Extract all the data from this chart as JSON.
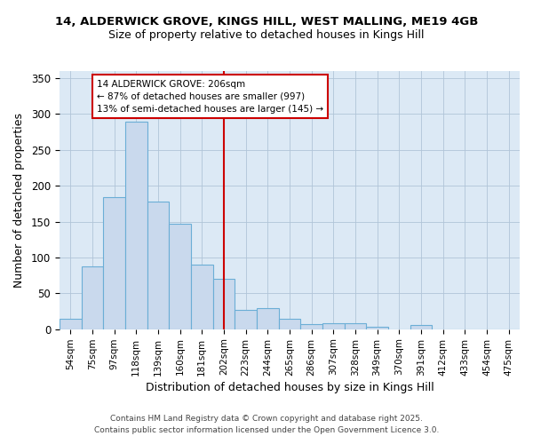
{
  "title_line1": "14, ALDERWICK GROVE, KINGS HILL, WEST MALLING, ME19 4GB",
  "title_line2": "Size of property relative to detached houses in Kings Hill",
  "categories": [
    "54sqm",
    "75sqm",
    "97sqm",
    "118sqm",
    "139sqm",
    "160sqm",
    "181sqm",
    "202sqm",
    "223sqm",
    "244sqm",
    "265sqm",
    "286sqm",
    "307sqm",
    "328sqm",
    "349sqm",
    "370sqm",
    "391sqm",
    "412sqm",
    "433sqm",
    "454sqm",
    "475sqm"
  ],
  "values": [
    14,
    88,
    184,
    290,
    178,
    147,
    90,
    70,
    27,
    29,
    14,
    7,
    8,
    8,
    3,
    0,
    6,
    0,
    0,
    0,
    0
  ],
  "bar_color": "#c9d9ed",
  "bar_edge_color": "#6baed6",
  "grid_color": "#b0c4d8",
  "bg_color": "#dce9f5",
  "fig_bg_color": "#ffffff",
  "xlabel": "Distribution of detached houses by size in Kings Hill",
  "ylabel": "Number of detached properties",
  "ylim": [
    0,
    360
  ],
  "yticks": [
    0,
    50,
    100,
    150,
    200,
    250,
    300,
    350
  ],
  "red_line_idx": 7,
  "annotation_line1": "14 ALDERWICK GROVE: 206sqm",
  "annotation_line2": "← 87% of detached houses are smaller (997)",
  "annotation_line3": "13% of semi-detached houses are larger (145) →",
  "annotation_box_color": "#ffffff",
  "annotation_box_edge": "#cc0000",
  "red_line_color": "#cc0000",
  "footer_line1": "Contains HM Land Registry data © Crown copyright and database right 2025.",
  "footer_line2": "Contains public sector information licensed under the Open Government Licence 3.0.",
  "title1_fontsize": 9.5,
  "title2_fontsize": 9.0,
  "tick_fontsize": 7.5,
  "axis_label_fontsize": 9.0,
  "annotation_fontsize": 7.5,
  "footer_fontsize": 6.5
}
